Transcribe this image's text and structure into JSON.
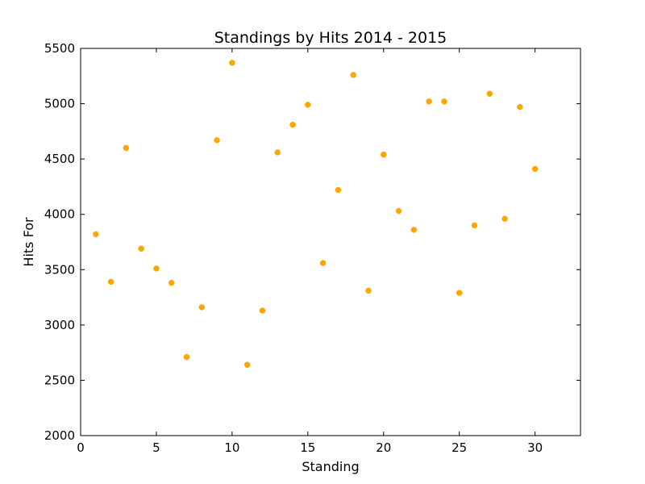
{
  "chart_data": {
    "type": "scatter",
    "title": "Standings by Hits 2014 - 2015",
    "xlabel": "Standing",
    "ylabel": "Hits For",
    "xlim": [
      0,
      33
    ],
    "ylim": [
      2000,
      5500
    ],
    "xticks": [
      0,
      5,
      10,
      15,
      20,
      25,
      30
    ],
    "yticks": [
      2000,
      2500,
      3000,
      3500,
      4000,
      4500,
      5000,
      5500
    ],
    "marker_color": "#ffa500",
    "grid": false,
    "points": [
      {
        "x": 1,
        "y": 3820
      },
      {
        "x": 2,
        "y": 3390
      },
      {
        "x": 3,
        "y": 4600
      },
      {
        "x": 4,
        "y": 3690
      },
      {
        "x": 5,
        "y": 3510
      },
      {
        "x": 6,
        "y": 3380
      },
      {
        "x": 7,
        "y": 2710
      },
      {
        "x": 8,
        "y": 3160
      },
      {
        "x": 9,
        "y": 4670
      },
      {
        "x": 10,
        "y": 5370
      },
      {
        "x": 11,
        "y": 2640
      },
      {
        "x": 12,
        "y": 3130
      },
      {
        "x": 13,
        "y": 4560
      },
      {
        "x": 14,
        "y": 4810
      },
      {
        "x": 15,
        "y": 4990
      },
      {
        "x": 16,
        "y": 3560
      },
      {
        "x": 17,
        "y": 4220
      },
      {
        "x": 18,
        "y": 5260
      },
      {
        "x": 19,
        "y": 3310
      },
      {
        "x": 20,
        "y": 4540
      },
      {
        "x": 21,
        "y": 4030
      },
      {
        "x": 22,
        "y": 3860
      },
      {
        "x": 23,
        "y": 5020
      },
      {
        "x": 24,
        "y": 5020
      },
      {
        "x": 25,
        "y": 3290
      },
      {
        "x": 26,
        "y": 3900
      },
      {
        "x": 27,
        "y": 5090
      },
      {
        "x": 28,
        "y": 3960
      },
      {
        "x": 29,
        "y": 4970
      },
      {
        "x": 30,
        "y": 4410
      }
    ]
  }
}
